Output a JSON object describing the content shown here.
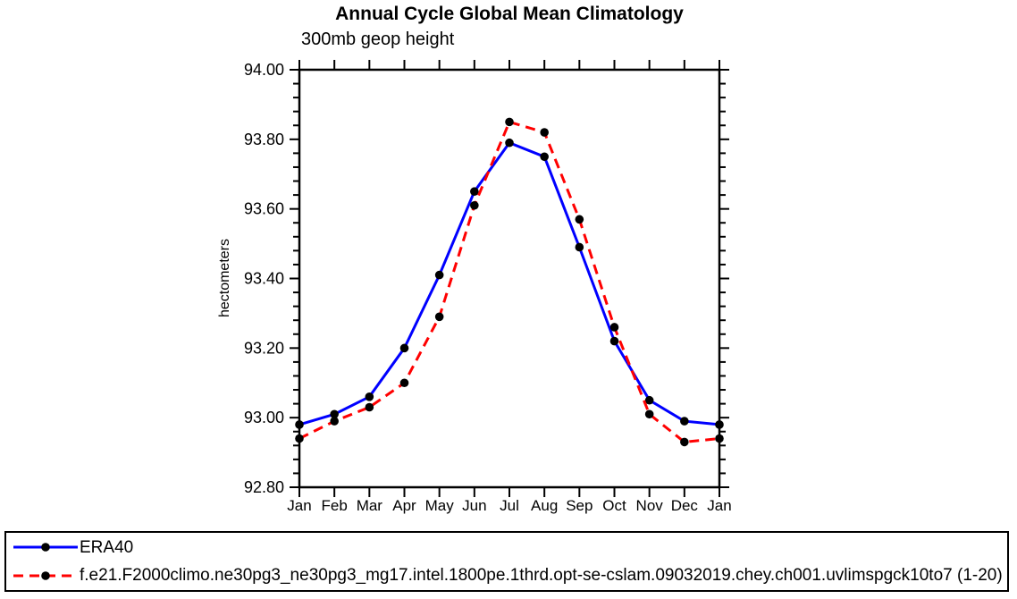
{
  "page": {
    "background": "#ffffff",
    "frame_color": "#000000"
  },
  "chart_data": {
    "type": "line",
    "title": "Annual Cycle Global Mean Climatology",
    "subtitle": "300mb geop height",
    "ylabel": "hectometers",
    "xlabel": "",
    "categories": [
      "Jan",
      "Feb",
      "Mar",
      "Apr",
      "May",
      "Jun",
      "Jul",
      "Aug",
      "Sep",
      "Oct",
      "Nov",
      "Dec",
      "Jan"
    ],
    "ylim": [
      92.8,
      94.0
    ],
    "ytick_labels": [
      "92.80",
      "93.00",
      "93.20",
      "93.40",
      "93.60",
      "93.80",
      "94.00"
    ],
    "ytick_major_step": 0.2,
    "ytick_minor_step": 0.04,
    "grid": false,
    "legend_position": "bottom-left boxed, below plot",
    "series": [
      {
        "name": "ERA40",
        "color": "#0000ff",
        "line_style": "solid",
        "marker": "filled-circle",
        "marker_color": "#000000",
        "values": [
          92.98,
          93.01,
          93.06,
          93.2,
          93.41,
          93.65,
          93.79,
          93.75,
          93.49,
          93.22,
          93.05,
          92.99,
          92.98
        ]
      },
      {
        "name": "f.e21.F2000climo.ne30pg3_ne30pg3_mg17.intel.1800pe.1thrd.opt-se-cslam.09032019.chey.ch001.uvlimspgck10to7 (1-20)",
        "color": "#ff0000",
        "line_style": "dashed",
        "marker": "filled-circle",
        "marker_color": "#000000",
        "values": [
          92.94,
          92.99,
          93.03,
          93.1,
          93.29,
          93.61,
          93.85,
          93.82,
          93.57,
          93.26,
          93.01,
          92.93,
          92.94
        ]
      }
    ]
  }
}
